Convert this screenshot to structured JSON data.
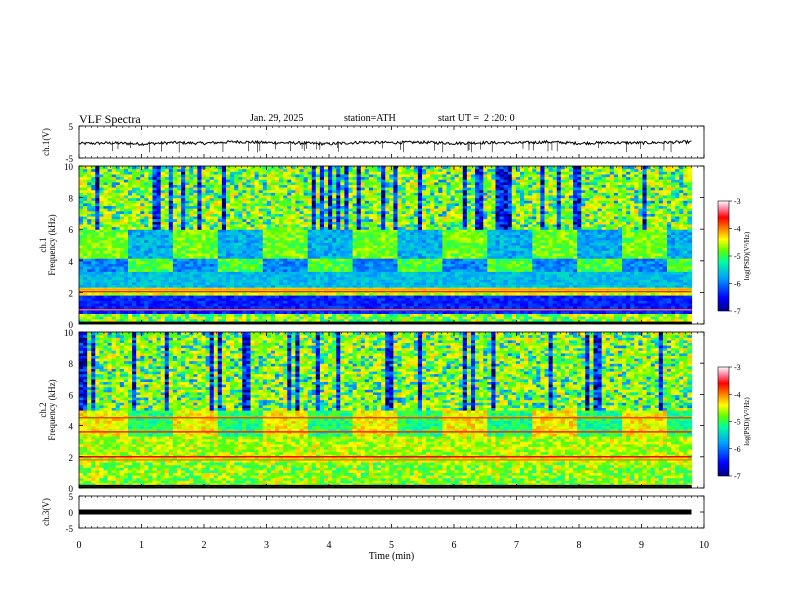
{
  "header": {
    "title": "VLF Spectra",
    "date": "Jan. 29, 2025",
    "station": "station=ATH",
    "start_ut": "start UT =  2 :20: 0"
  },
  "chart_data": [
    {
      "type": "line",
      "panel": "ch1-waveform",
      "ylabel": "ch.1(V)",
      "ylim": [
        -5,
        5
      ],
      "yticks": [
        "5",
        "-5"
      ],
      "xlim": [
        0,
        10
      ],
      "series": [
        {
          "x": [
            0,
            0.5,
            1,
            1.5,
            2,
            2.5,
            3,
            3.5,
            4,
            4.5,
            5,
            5.5,
            6,
            6.5,
            7,
            7.5,
            8,
            8.5,
            9,
            9.5,
            9.8
          ],
          "values": [
            -0.5,
            -0.3,
            -0.6,
            -0.2,
            -0.4,
            0.1,
            -0.2,
            -0.3,
            -0.6,
            -0.1,
            -0.2,
            -0.1,
            -0.4,
            -0.2,
            -0.3,
            0.0,
            -0.4,
            -0.2,
            -0.3,
            -0.1,
            0.0
          ],
          "color": "#000000"
        }
      ]
    },
    {
      "type": "heatmap",
      "panel": "ch1-spectrogram",
      "ylabel": "ch.1 Frequency (kHz)",
      "ylim": [
        0,
        10
      ],
      "yticks": [
        "0",
        "2",
        "4",
        "6",
        "8",
        "10"
      ],
      "xlim": [
        0,
        10
      ],
      "colorbar": {
        "label": "log(PSD)(V²/Hz)",
        "range": [
          -7,
          -3
        ],
        "ticks": [
          "-3",
          "-4",
          "-5",
          "-6",
          "-7"
        ],
        "colors": [
          "#000080",
          "#0000ff",
          "#00a0ff",
          "#00ffa0",
          "#60ff00",
          "#ffff00",
          "#ff8000",
          "#ff0000",
          "#ff80a0",
          "#ffffff"
        ]
      }
    },
    {
      "type": "heatmap",
      "panel": "ch2-spectrogram",
      "ylabel": "ch.2 Frequency (kHz)",
      "ylim": [
        0,
        10
      ],
      "yticks": [
        "0",
        "2",
        "4",
        "6",
        "8",
        "10"
      ],
      "xlim": [
        0,
        10
      ],
      "colorbar": {
        "label": "log(PSD)(V²/Hz)",
        "range": [
          -7,
          -3
        ],
        "ticks": [
          "-3",
          "-4",
          "-5",
          "-6",
          "-7"
        ],
        "colors": [
          "#000080",
          "#0000ff",
          "#00a0ff",
          "#00ffa0",
          "#60ff00",
          "#ffff00",
          "#ff8000",
          "#ff0000",
          "#ff80a0",
          "#ffffff"
        ]
      }
    },
    {
      "type": "line",
      "panel": "ch3-waveform",
      "ylabel": "ch.3(V)",
      "ylim": [
        -5,
        5
      ],
      "yticks": [
        "5",
        "0",
        "-5"
      ],
      "xlim": [
        0,
        10
      ],
      "series": [
        {
          "x": [
            0,
            9.8
          ],
          "values": [
            0,
            0
          ],
          "color": "#000000"
        }
      ]
    }
  ],
  "xaxis": {
    "label": "Time (min)",
    "ticks": [
      "0",
      "1",
      "2",
      "3",
      "4",
      "5",
      "6",
      "7",
      "8",
      "9",
      "10"
    ]
  }
}
